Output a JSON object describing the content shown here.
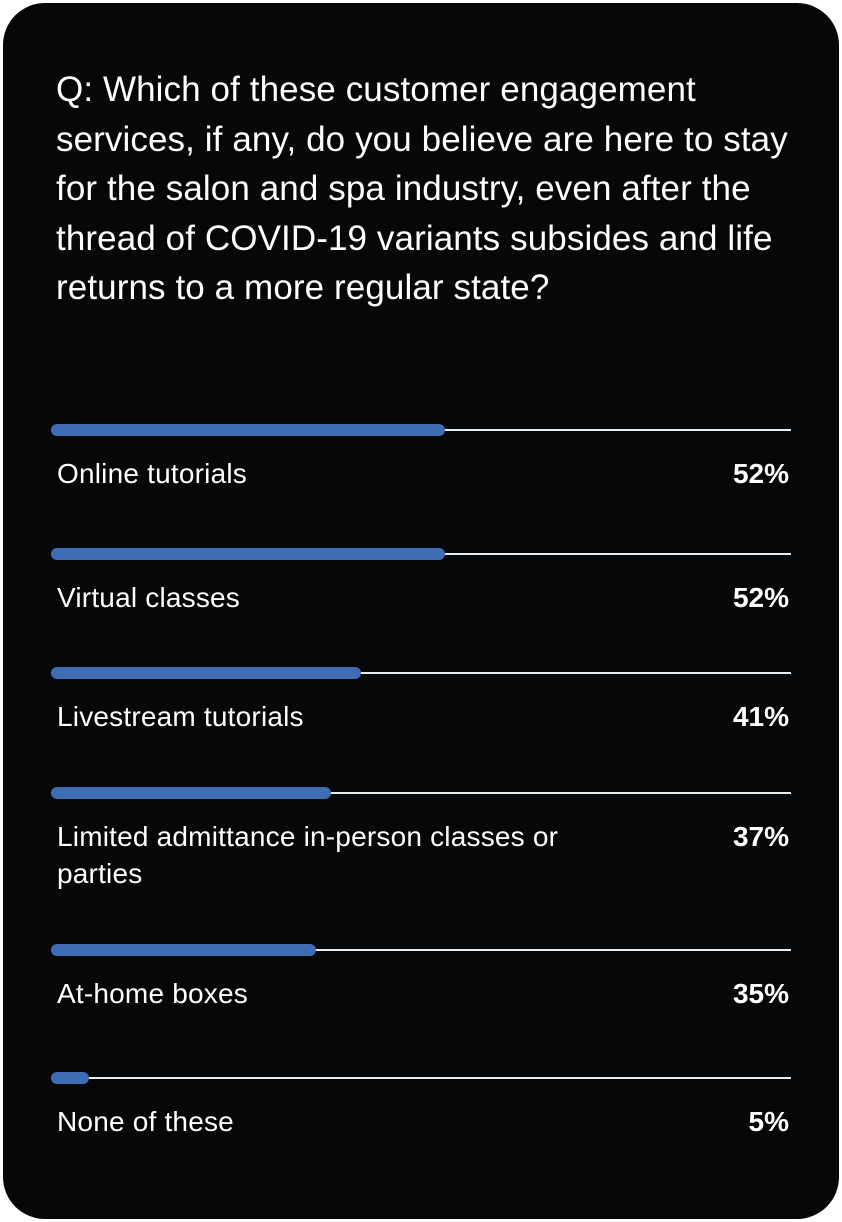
{
  "colors": {
    "background": "#050709",
    "bar": "#3f6db3",
    "track": "#e9ecef",
    "text": "#ffffff"
  },
  "chart_data": {
    "type": "bar",
    "orientation": "horizontal",
    "title": "Q: Which of these customer engagement services, if any, do you believe are here to stay for the salon and spa industry, even after the thread of COVID-19 variants subsides and life returns to a more regular state?",
    "categories": [
      "Online tutorials",
      "Virtual classes",
      "Livestream tutorials",
      "Limited admittance in-person classes or parties",
      "At-home boxes",
      "None of these"
    ],
    "values": [
      52,
      52,
      41,
      37,
      35,
      5
    ],
    "value_labels": [
      "52%",
      "52%",
      "41%",
      "37%",
      "35%",
      "5%"
    ],
    "xlim": [
      0,
      100
    ],
    "grid": false,
    "legend": "none"
  }
}
